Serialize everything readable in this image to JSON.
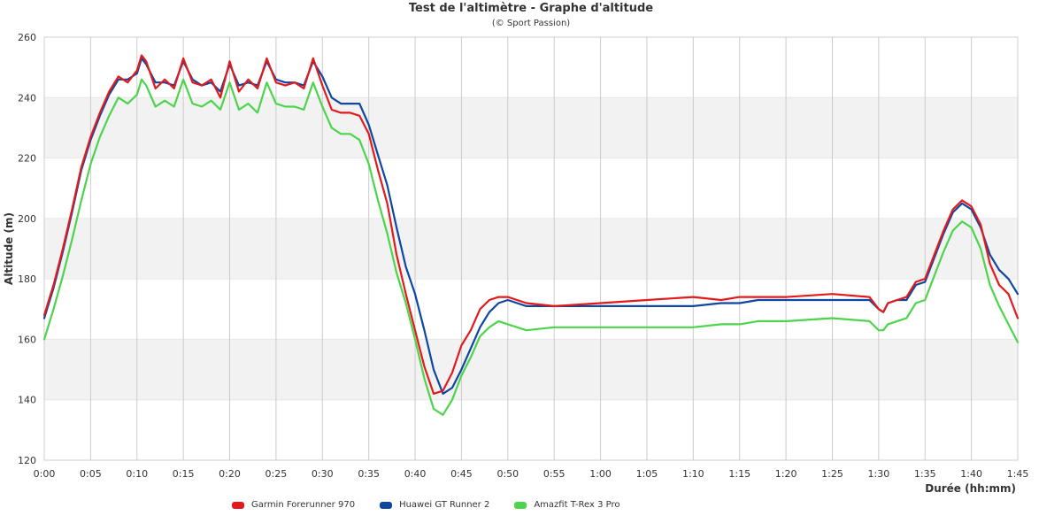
{
  "chart_data": {
    "type": "line",
    "title": "Test de l'altimètre - Graphe d'altitude",
    "subtitle": "(© Sport Passion)",
    "xlabel": "Durée (hh:mm)",
    "ylabel": "Altitude (m)",
    "ylim": [
      120,
      260
    ],
    "yticks": [
      120,
      140,
      160,
      180,
      200,
      220,
      240,
      260
    ],
    "xlim": [
      0,
      105
    ],
    "xticks": [
      0,
      5,
      10,
      15,
      20,
      25,
      30,
      35,
      40,
      45,
      50,
      55,
      60,
      65,
      70,
      75,
      80,
      85,
      90,
      95,
      100,
      105
    ],
    "xtick_labels": [
      "0:00",
      "0:05",
      "0:10",
      "0:15",
      "0:20",
      "0:25",
      "0:30",
      "0:35",
      "0:40",
      "0:45",
      "0:50",
      "0:55",
      "1:00",
      "1:05",
      "1:10",
      "1:15",
      "1:20",
      "1:25",
      "1:30",
      "1:35",
      "1:40",
      "1:45"
    ],
    "grid": "vertical",
    "banded_background": true,
    "legend_position": "bottom",
    "series": [
      {
        "name": "Garmin Forerunner 970",
        "color": "#e31a1c",
        "x": [
          0,
          1,
          2,
          3,
          4,
          5,
          6,
          7,
          8,
          9,
          10,
          10.5,
          11,
          12,
          13,
          14,
          15,
          16,
          17,
          18,
          19,
          20,
          21,
          22,
          23,
          24,
          25,
          26,
          27,
          28,
          29,
          30,
          31,
          32,
          33,
          34,
          35,
          36,
          37,
          38,
          39,
          40,
          41,
          42,
          43,
          44,
          45,
          46,
          47,
          48,
          49,
          50,
          52,
          55,
          60,
          65,
          70,
          73,
          75,
          77,
          80,
          85,
          89,
          90,
          90.5,
          91,
          92,
          93,
          94,
          95,
          96,
          97,
          98,
          99,
          100,
          101,
          102,
          103,
          104,
          105
        ],
        "y": [
          168,
          178,
          190,
          203,
          217,
          227,
          235,
          242,
          247,
          245,
          249,
          254,
          252,
          243,
          246,
          243,
          253,
          245,
          244,
          246,
          240,
          252,
          242,
          246,
          243,
          253,
          245,
          244,
          245,
          243,
          253,
          244,
          236,
          235,
          235,
          234,
          228,
          216,
          205,
          188,
          175,
          163,
          151,
          142,
          143,
          149,
          158,
          163,
          170,
          173,
          174,
          174,
          172,
          171,
          172,
          173,
          174,
          173,
          174,
          174,
          174,
          175,
          174,
          170,
          169,
          172,
          173,
          174,
          179,
          180,
          188,
          196,
          203,
          206,
          204,
          198,
          185,
          178,
          175,
          167
        ]
      },
      {
        "name": "Huawei GT Runner 2",
        "color": "#0d47a1",
        "x": [
          0,
          1,
          2,
          3,
          4,
          5,
          6,
          7,
          8,
          9,
          10,
          10.5,
          11,
          12,
          13,
          14,
          15,
          16,
          17,
          18,
          19,
          20,
          21,
          22,
          23,
          24,
          25,
          26,
          27,
          28,
          29,
          30,
          31,
          32,
          33,
          34,
          35,
          36,
          37,
          38,
          39,
          40,
          41,
          42,
          43,
          44,
          45,
          46,
          47,
          48,
          49,
          50,
          52,
          55,
          60,
          65,
          70,
          73,
          75,
          77,
          80,
          85,
          89,
          90,
          90.5,
          91,
          92,
          93,
          94,
          95,
          96,
          97,
          98,
          99,
          100,
          101,
          102,
          103,
          104,
          105
        ],
        "y": [
          167,
          177,
          189,
          202,
          216,
          226,
          234,
          241,
          246,
          246,
          248,
          253,
          251,
          245,
          245,
          244,
          252,
          246,
          244,
          245,
          242,
          251,
          244,
          245,
          244,
          252,
          246,
          245,
          245,
          244,
          252,
          247,
          240,
          238,
          238,
          238,
          231,
          221,
          211,
          197,
          184,
          175,
          163,
          150,
          142,
          144,
          150,
          157,
          164,
          169,
          172,
          173,
          171,
          171,
          171,
          171,
          171,
          172,
          172,
          173,
          173,
          173,
          173,
          170,
          169,
          172,
          173,
          173,
          178,
          179,
          187,
          195,
          202,
          205,
          203,
          197,
          188,
          183,
          180,
          175
        ]
      },
      {
        "name": "Amazfit T-Rex 3 Pro",
        "color": "#4cd44c",
        "x": [
          0,
          1,
          2,
          3,
          4,
          5,
          6,
          7,
          8,
          9,
          10,
          10.5,
          11,
          12,
          13,
          14,
          15,
          16,
          17,
          18,
          19,
          20,
          21,
          22,
          23,
          24,
          25,
          26,
          27,
          28,
          29,
          30,
          31,
          32,
          33,
          34,
          35,
          36,
          37,
          38,
          39,
          40,
          41,
          42,
          43,
          44,
          45,
          46,
          47,
          48,
          49,
          50,
          52,
          55,
          60,
          65,
          70,
          73,
          75,
          77,
          80,
          85,
          89,
          90,
          90.5,
          91,
          92,
          93,
          94,
          95,
          96,
          97,
          98,
          99,
          100,
          101,
          102,
          103,
          104,
          105
        ],
        "y": [
          160,
          170,
          181,
          193,
          206,
          218,
          227,
          234,
          240,
          238,
          241,
          246,
          244,
          237,
          239,
          237,
          246,
          238,
          237,
          239,
          236,
          245,
          236,
          238,
          235,
          245,
          238,
          237,
          237,
          236,
          245,
          237,
          230,
          228,
          228,
          226,
          218,
          206,
          195,
          182,
          172,
          160,
          147,
          137,
          135,
          140,
          148,
          154,
          161,
          164,
          166,
          165,
          163,
          164,
          164,
          164,
          164,
          165,
          165,
          166,
          166,
          167,
          166,
          163,
          163,
          165,
          166,
          167,
          172,
          173,
          181,
          189,
          196,
          199,
          197,
          190,
          178,
          171,
          165,
          159
        ]
      }
    ]
  }
}
